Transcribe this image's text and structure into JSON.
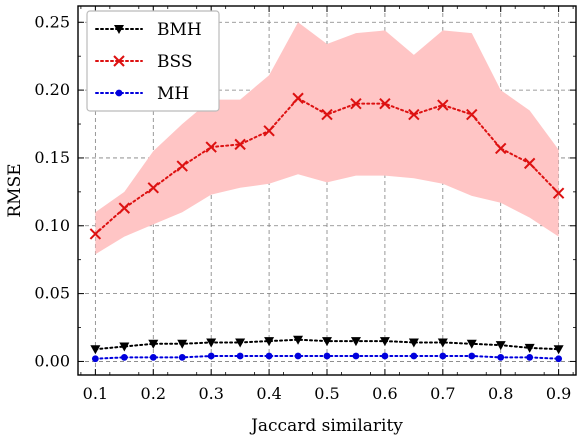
{
  "chart_data": {
    "type": "line",
    "xlabel": "Jaccard similarity",
    "ylabel": "RMSE",
    "xlim": [
      0.07,
      0.93
    ],
    "ylim": [
      -0.01,
      0.262
    ],
    "x_ticks": [
      "0.1",
      "0.2",
      "0.3",
      "0.4",
      "0.5",
      "0.6",
      "0.7",
      "0.8",
      "0.9"
    ],
    "y_ticks": [
      "0.00",
      "0.05",
      "0.10",
      "0.15",
      "0.20",
      "0.25"
    ],
    "grid": true,
    "legend_position": "top-left",
    "x": [
      0.1,
      0.15,
      0.2,
      0.25,
      0.3,
      0.35,
      0.4,
      0.45,
      0.5,
      0.55,
      0.6,
      0.65,
      0.7,
      0.75,
      0.8,
      0.85,
      0.9
    ],
    "series": [
      {
        "name": "BMH",
        "color": "#000000",
        "marker": "triangle-down",
        "values": [
          0.009,
          0.011,
          0.013,
          0.013,
          0.014,
          0.014,
          0.015,
          0.016,
          0.015,
          0.015,
          0.015,
          0.014,
          0.014,
          0.013,
          0.012,
          0.01,
          0.009
        ]
      },
      {
        "name": "BSS",
        "color": "#dd1111",
        "marker": "x",
        "band_color": "#ffc5c5",
        "values": [
          0.094,
          0.113,
          0.128,
          0.144,
          0.158,
          0.16,
          0.17,
          0.194,
          0.182,
          0.19,
          0.19,
          0.182,
          0.189,
          0.182,
          0.157,
          0.146,
          0.124
        ],
        "band_lower": [
          0.079,
          0.092,
          0.101,
          0.11,
          0.123,
          0.128,
          0.131,
          0.138,
          0.132,
          0.137,
          0.137,
          0.135,
          0.131,
          0.122,
          0.117,
          0.106,
          0.092
        ],
        "band_upper": [
          0.11,
          0.125,
          0.155,
          0.175,
          0.193,
          0.193,
          0.211,
          0.25,
          0.234,
          0.242,
          0.244,
          0.226,
          0.244,
          0.242,
          0.2,
          0.185,
          0.156
        ]
      },
      {
        "name": "MH",
        "color": "#0000dd",
        "marker": "circle",
        "values": [
          0.002,
          0.003,
          0.003,
          0.003,
          0.004,
          0.004,
          0.004,
          0.004,
          0.004,
          0.004,
          0.004,
          0.004,
          0.004,
          0.004,
          0.003,
          0.003,
          0.002
        ]
      }
    ]
  }
}
